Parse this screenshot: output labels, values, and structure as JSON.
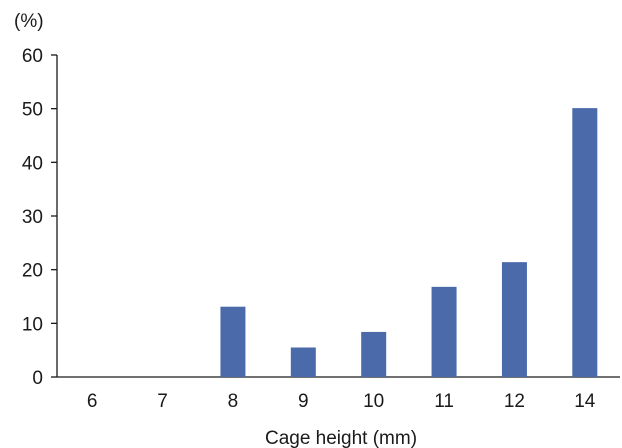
{
  "chart_data": {
    "type": "bar",
    "title": "",
    "xlabel": "Cage height (mm)",
    "ylabel": "(%)",
    "categories": [
      "6",
      "7",
      "8",
      "9",
      "10",
      "11",
      "12",
      "14"
    ],
    "values": [
      0,
      0,
      13.1,
      5.5,
      8.4,
      16.8,
      21.4,
      50.1
    ],
    "ylim": [
      0,
      60
    ],
    "yticks": [
      "0",
      "10",
      "20",
      "30",
      "40",
      "50",
      "60"
    ],
    "grid": false,
    "bar_color": "#4a6aaa"
  }
}
